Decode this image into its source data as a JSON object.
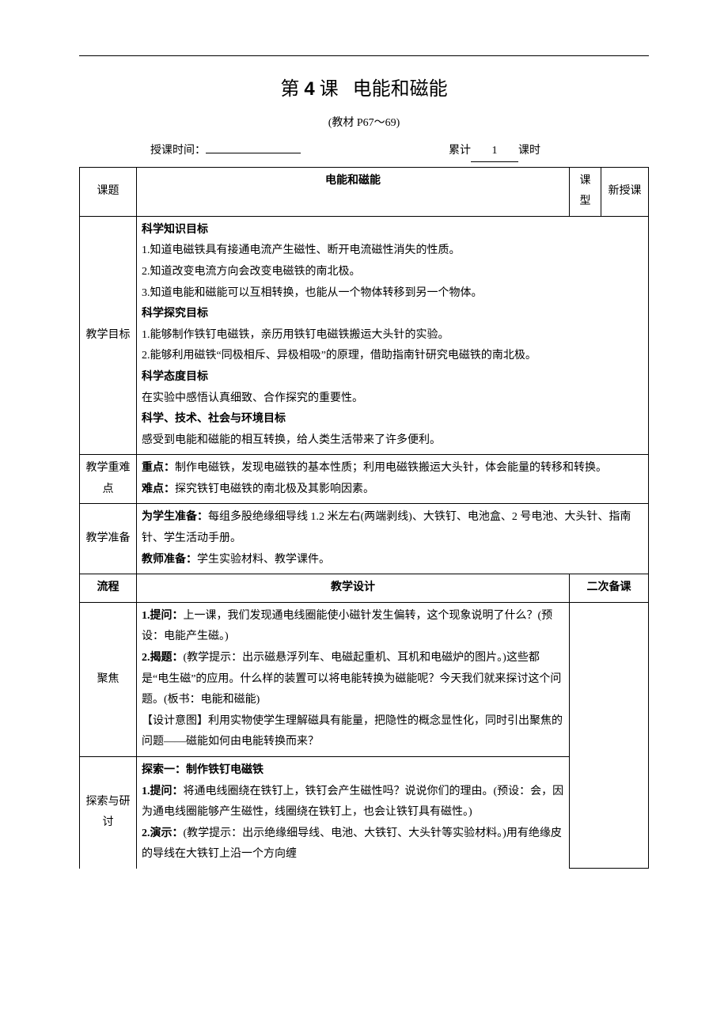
{
  "title_prefix": "第",
  "title_num": "4",
  "title_mid": "课",
  "title_name": "电能和磁能",
  "subtitle": "(教材 P67～69)",
  "meta": {
    "teach_time_label": "授课时间：",
    "teach_time_value": "",
    "cumulative_label": "累计",
    "cumulative_value": "1",
    "period_label": "课时"
  },
  "row_topic": {
    "label": "课题",
    "value": "电能和磁能",
    "ktype_label": "课型",
    "ktype_value": "新授课"
  },
  "row_goals": {
    "label": "教学目标",
    "h1": "科学知识目标",
    "k1": "1.知道电磁铁具有接通电流产生磁性、断开电流磁性消失的性质。",
    "k2": "2.知道改变电流方向会改变电磁铁的南北极。",
    "k3": "3.知道电能和磁能可以互相转换，也能从一个物体转移到另一个物体。",
    "h2": "科学探究目标",
    "e1": "1.能够制作铁钉电磁铁，亲历用铁钉电磁铁搬运大头针的实验。",
    "e2": "2.能够利用磁铁“同极相斥、异极相吸”的原理，借助指南针研究电磁铁的南北极。",
    "h3": "科学态度目标",
    "a1": "在实验中感悟认真细致、合作探究的重要性。",
    "h4": "科学、技术、社会与环境目标",
    "s1": "感受到电能和磁能的相互转换，给人类生活带来了许多便利。"
  },
  "row_focus": {
    "label": "教学重难点",
    "p1_label": "重点：",
    "p1": "制作电磁铁，发现电磁铁的基本性质；利用电磁铁搬运大头针，体会能量的转移和转换。",
    "p2_label": "难点：",
    "p2": "探究铁钉电磁铁的南北极及其影响因素。"
  },
  "row_prep": {
    "label": "教学准备",
    "s_label": "为学生准备：",
    "s_text": "每组多股绝缘细导线 1.2 米左右(两端剥线)、大铁钉、电池盒、2 号电池、大头针、指南针、学生活动手册。",
    "t_label": "教师准备：",
    "t_text": "学生实验材料、教学课件。"
  },
  "row_header2": {
    "c1": "流程",
    "c2": "教学设计",
    "c3": "二次备课"
  },
  "row_focus2": {
    "label": "聚焦",
    "p1_label": "1.提问：",
    "p1": "上一课，我们发现通电线圈能使小磁针发生偏转，这个现象说明了什么？(预设：电能产生磁。)",
    "p2_label": "2.揭题：",
    "p2": "(教学提示：出示磁悬浮列车、电磁起重机、耳机和电磁炉的图片。)这些都是“电生磁”的应用。什么样的装置可以将电能转换为磁能呢？今天我们就来探讨这个问题。(板书：电能和磁能)",
    "p3": "【设计意图】利用实物使学生理解磁具有能量，把隐性的概念显性化，同时引出聚焦的问题——磁能如何由电能转换而来？"
  },
  "row_explore": {
    "label": "探索与研讨",
    "h1": "探索一：制作铁钉电磁铁",
    "p1_label": "1.提问：",
    "p1": "将通电线圈绕在铁钉上，铁钉会产生磁性吗？说说你们的理由。(预设：会，因为通电线圈能够产生磁性，线圈绕在铁钉上，也会让铁钉具有磁性。)",
    "p2_label": "2.演示：",
    "p2": "(教学提示：出示绝缘细导线、电池、大铁钉、大头针等实验材料。)用有绝缘皮的导线在大铁钉上沿一个方向缠"
  }
}
